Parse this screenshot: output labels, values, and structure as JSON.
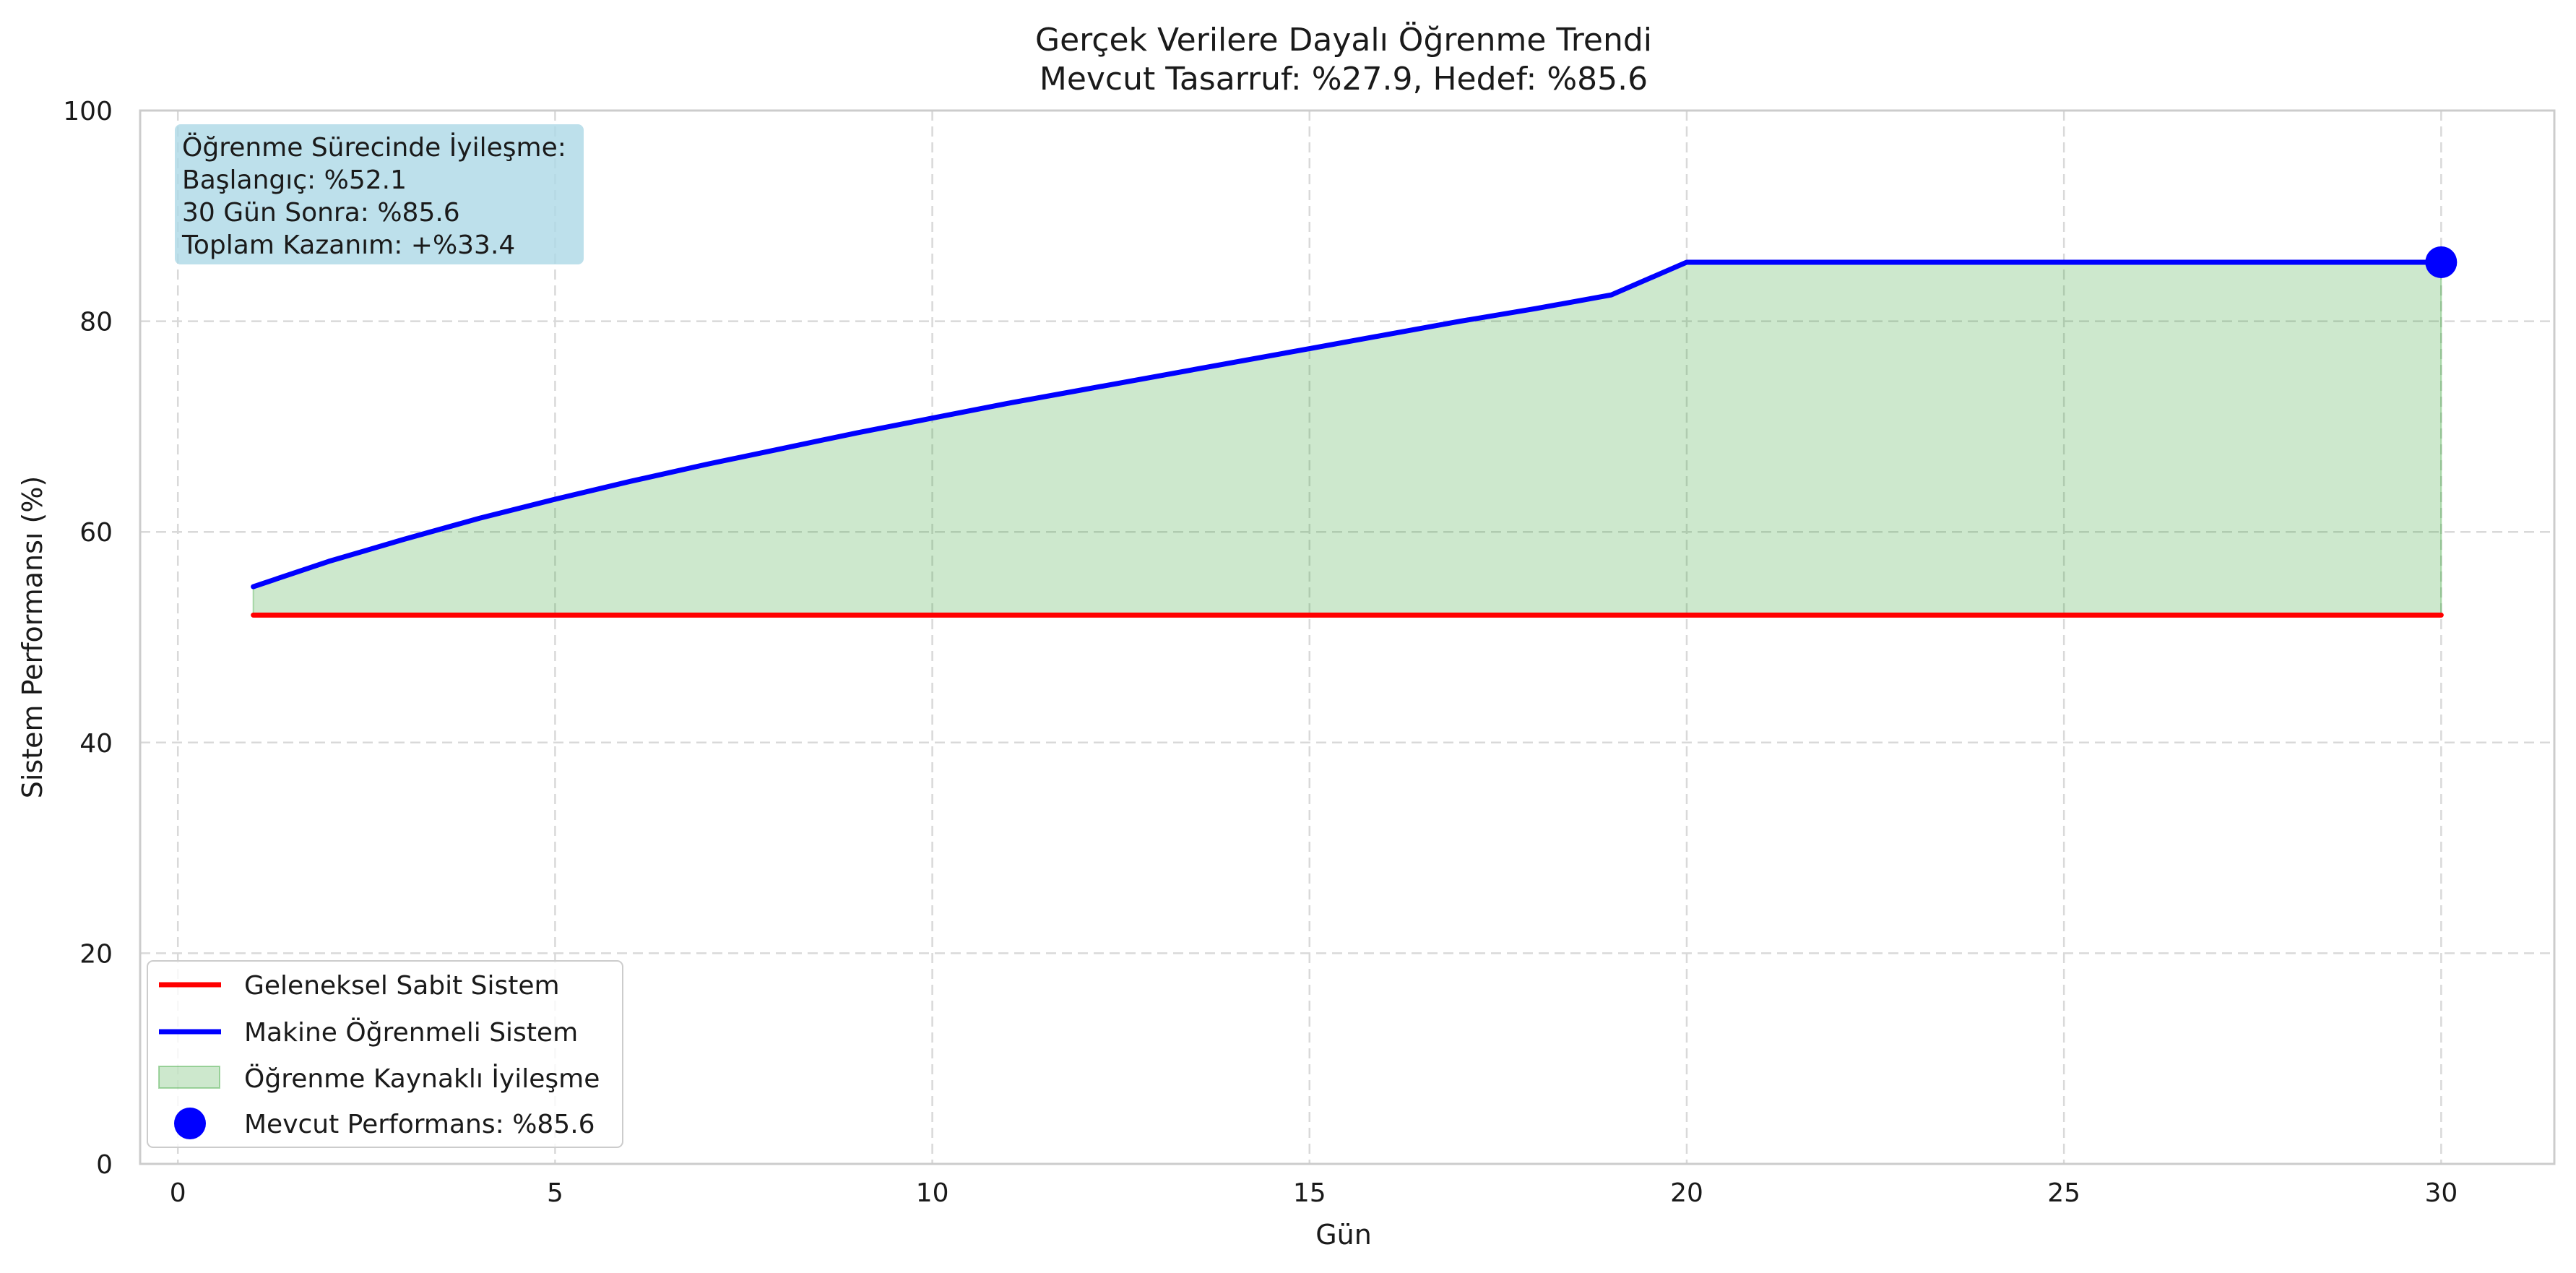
{
  "chart_data": {
    "type": "line",
    "title": "Gerçek Verilere Dayalı Öğrenme Trendi",
    "subtitle": "Mevcut Tasarruf: %27.9, Hedef: %85.6",
    "xlabel": "Gün",
    "ylabel": "Sistem Performansı (%)",
    "xlim": [
      -0.5,
      31.5
    ],
    "ylim": [
      0,
      100
    ],
    "x_ticks": [
      0,
      5,
      10,
      15,
      20,
      25,
      30
    ],
    "y_ticks": [
      0,
      20,
      40,
      60,
      80,
      100
    ],
    "grid": true,
    "legend_position": "lower-left",
    "x": [
      1,
      2,
      3,
      4,
      5,
      6,
      7,
      8,
      9,
      10,
      11,
      12,
      13,
      14,
      15,
      16,
      17,
      18,
      19,
      20,
      21,
      22,
      23,
      24,
      25,
      26,
      27,
      28,
      29,
      30
    ],
    "series": [
      {
        "name": "Geleneksel Sabit Sistem",
        "color": "#ff0000",
        "values": [
          52.1,
          52.1,
          52.1,
          52.1,
          52.1,
          52.1,
          52.1,
          52.1,
          52.1,
          52.1,
          52.1,
          52.1,
          52.1,
          52.1,
          52.1,
          52.1,
          52.1,
          52.1,
          52.1,
          52.1,
          52.1,
          52.1,
          52.1,
          52.1,
          52.1,
          52.1,
          52.1,
          52.1,
          52.1,
          52.1
        ]
      },
      {
        "name": "Makine Öğrenmeli Sistem",
        "color": "#0000ff",
        "values": [
          54.8,
          57.2,
          59.3,
          61.3,
          63.1,
          64.8,
          66.4,
          67.9,
          69.4,
          70.8,
          72.2,
          73.5,
          74.8,
          76.1,
          77.4,
          78.7,
          80.0,
          81.2,
          82.5,
          85.6,
          85.6,
          85.6,
          85.6,
          85.6,
          85.6,
          85.6,
          85.6,
          85.6,
          85.6,
          85.6
        ]
      }
    ],
    "fill_between": {
      "name": "Öğrenme Kaynaklı İyileşme",
      "color": "#2ca02c",
      "opacity": 0.24
    },
    "current_point": {
      "name": "Mevcut Performans: %85.6",
      "x": 30,
      "y": 85.6,
      "color": "#0000ff"
    },
    "annotation": {
      "lines": [
        "Öğrenme Sürecinde İyileşme:",
        "Başlangıç: %52.1",
        "30 Gün Sonra: %85.6",
        "Toplam Kazanım: +%33.4"
      ],
      "background": "#add8e6"
    }
  }
}
